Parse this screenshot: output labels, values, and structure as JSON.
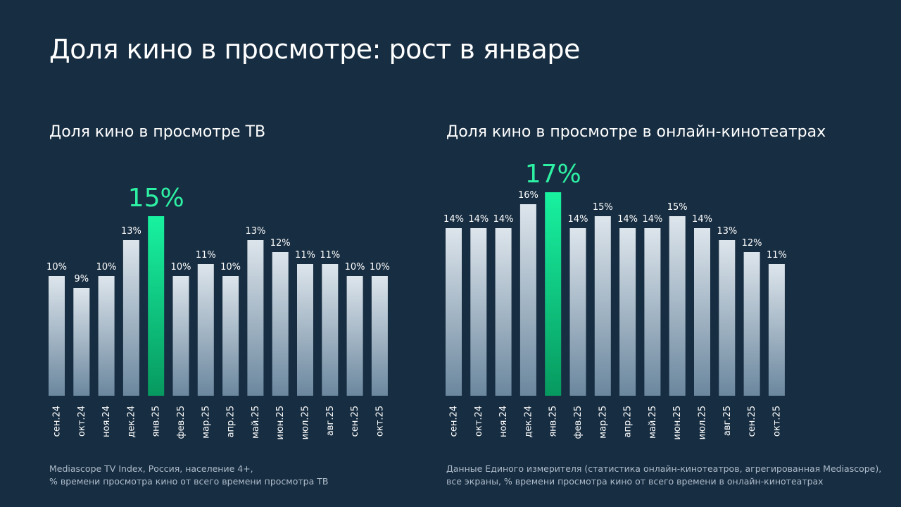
{
  "page_title": "Доля кино в просмотре: рост в январе",
  "colors": {
    "background": "#172d41",
    "bar_top": "#dde5ec",
    "bar_bottom": "#6b879e",
    "highlight_top": "#18f2a0",
    "highlight_bottom": "#07995f",
    "highlight_label": "#2ef0a4",
    "text": "#ffffff",
    "footnote": "#aebccb"
  },
  "chart_data": [
    {
      "type": "bar",
      "title": "Доля кино в просмотре ТВ",
      "categories": [
        "сен.24",
        "окт.24",
        "ноя.24",
        "дек.24",
        "янв.25",
        "фев.25",
        "мар.25",
        "апр.25",
        "май.25",
        "июн.25",
        "июл.25",
        "авг.25",
        "сен.25",
        "окт.25"
      ],
      "values": [
        10,
        9,
        10,
        13,
        15,
        10,
        11,
        10,
        13,
        12,
        11,
        11,
        10,
        10
      ],
      "data_labels": [
        "10%",
        "9%",
        "10%",
        "13%",
        "15%",
        "10%",
        "11%",
        "10%",
        "13%",
        "12%",
        "11%",
        "11%",
        "10%",
        "10%"
      ],
      "highlight_index": 4,
      "xlabel": "",
      "ylabel": "",
      "ylim": [
        0,
        16
      ],
      "grid": false,
      "footnote": [
        "Mediascope TV Index, Россия, население 4+,",
        "% времени просмотра кино от всего времени просмотра ТВ"
      ]
    },
    {
      "type": "bar",
      "title": "Доля кино в просмотре в онлайн-кинотеатрах",
      "categories": [
        "сен.24",
        "окт.24",
        "ноя.24",
        "дек.24",
        "янв.25",
        "фев.25",
        "мар.25",
        "апр.25",
        "май.25",
        "июн.25",
        "июл.25",
        "авг.25",
        "сен.25",
        "окт.25"
      ],
      "values": [
        14,
        14,
        14,
        16,
        17,
        14,
        15,
        14,
        14,
        15,
        14,
        13,
        12,
        11
      ],
      "data_labels": [
        "14%",
        "14%",
        "14%",
        "16%",
        "17%",
        "14%",
        "15%",
        "14%",
        "14%",
        "15%",
        "14%",
        "13%",
        "12%",
        "11%"
      ],
      "highlight_index": 4,
      "xlabel": "",
      "ylabel": "",
      "ylim": [
        0,
        18
      ],
      "grid": false,
      "footnote": [
        "Данные Единого измерителя (статистика онлайн-кинотеатров, агрегированная Mediascope),",
        "все экраны, % времени просмотра кино от всего времени в онлайн-кинотеатрах"
      ]
    }
  ]
}
